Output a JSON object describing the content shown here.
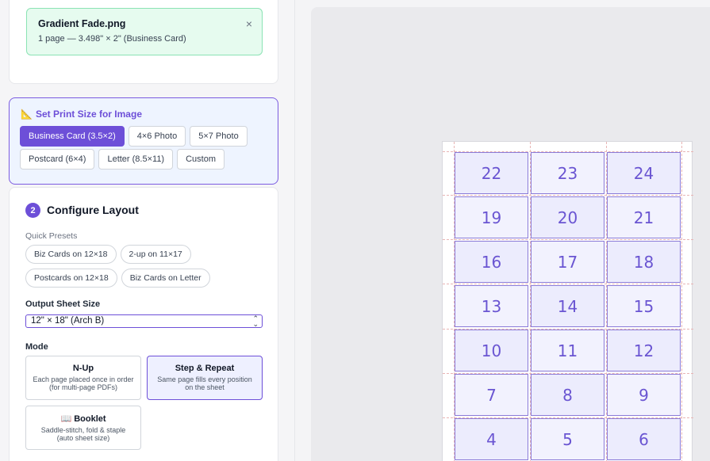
{
  "upload": {
    "file_name": "Gradient Fade.png",
    "file_meta": "1 page — 3.498\" × 2\" (Business Card)",
    "close_glyph": "×"
  },
  "print_size": {
    "icon": "ruler-triangle-icon",
    "title": "Set Print Size for Image",
    "options": [
      "Business Card (3.5×2)",
      "4×6 Photo",
      "5×7 Photo",
      "Postcard (6×4)",
      "Letter (8.5×11)",
      "Custom"
    ],
    "selected": "Business Card (3.5×2)"
  },
  "layout": {
    "step_number": "2",
    "title": "Configure Layout",
    "presets_label": "Quick Presets",
    "presets": [
      "Biz Cards on 12×18",
      "2-up on 11×17",
      "Postcards on 12×18",
      "Biz Cards on Letter"
    ],
    "sheet_size_label": "Output Sheet Size",
    "sheet_size_value": "12\" × 18\" (Arch B)",
    "mode_label": "Mode",
    "modes": [
      {
        "title": "N-Up",
        "desc": "Each page placed once in order (for multi-page PDFs)"
      },
      {
        "title": "Step & Repeat",
        "desc": "Same page fills every position on the sheet"
      },
      {
        "title": "📖 Booklet",
        "desc": "Saddle-stitch, fold & staple (auto sheet size)"
      }
    ],
    "selected_mode": "Step & Repeat"
  },
  "preview": {
    "cells": [
      "22",
      "23",
      "24",
      "19",
      "20",
      "21",
      "16",
      "17",
      "18",
      "13",
      "14",
      "15",
      "10",
      "11",
      "12",
      "7",
      "8",
      "9",
      "4",
      "5",
      "6"
    ]
  },
  "colors": {
    "accent": "#6d4fd8",
    "success_bg": "#e6fbef",
    "cell_border": "#8b7bd8"
  }
}
